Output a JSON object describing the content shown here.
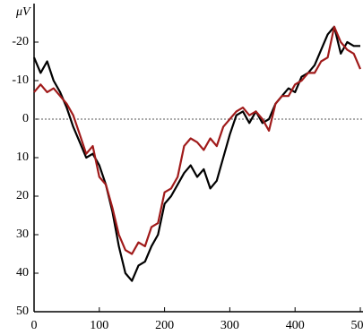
{
  "chart_data": {
    "type": "line",
    "y_label": "μV",
    "x": [
      0,
      10,
      20,
      30,
      40,
      50,
      60,
      70,
      80,
      90,
      100,
      110,
      120,
      130,
      140,
      150,
      160,
      170,
      180,
      190,
      200,
      210,
      220,
      230,
      240,
      250,
      260,
      270,
      280,
      290,
      300,
      310,
      320,
      330,
      340,
      350,
      360,
      370,
      380,
      390,
      400,
      410,
      420,
      430,
      440,
      450,
      460,
      470,
      480,
      490,
      500
    ],
    "series": [
      {
        "color": "#000000",
        "values": [
          -16,
          -12,
          -15,
          -10,
          -7,
          -3,
          2,
          6,
          10,
          9,
          12,
          17,
          24,
          33,
          40,
          42,
          38,
          37,
          33,
          30,
          22,
          20,
          17,
          14,
          12,
          15,
          13,
          18,
          16,
          10,
          4,
          -1,
          -2,
          1,
          -2,
          1,
          0,
          -4,
          -6,
          -8,
          -7,
          -11,
          -12,
          -14,
          -18,
          -22,
          -24,
          -17,
          -20,
          -19,
          -19
        ]
      },
      {
        "color": "#a01a1a",
        "values": [
          -7,
          -9,
          -7,
          -8,
          -6,
          -4,
          -1,
          4,
          9,
          7,
          15,
          17,
          23,
          30,
          34,
          35,
          32,
          33,
          28,
          27,
          19,
          18,
          15,
          7,
          5,
          6,
          8,
          5,
          7,
          2,
          0,
          -2,
          -3,
          -1,
          -2,
          0,
          3,
          -4,
          -6,
          -6,
          -9,
          -10,
          -12,
          -12,
          -15,
          -16,
          -24,
          -20,
          -18,
          -17,
          -13
        ]
      }
    ],
    "xlim": [
      0,
      500
    ],
    "xticks": [
      0,
      100,
      200,
      300,
      400,
      500
    ],
    "ylim": [
      50,
      -30
    ],
    "yticks": [
      -20,
      -10,
      0,
      10,
      20,
      30,
      40,
      50
    ],
    "zero_line": true
  }
}
